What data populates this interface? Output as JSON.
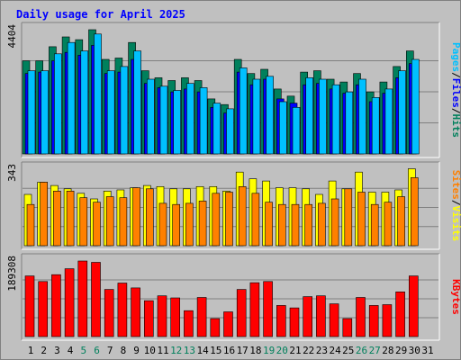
{
  "title": "Daily usage for April 2025",
  "colors": {
    "background": "#c0c0c0",
    "panel": "#c0c0c0",
    "title": "#0000ff",
    "hits": "#00805c",
    "files": "#0000ff",
    "pages": "#00c0ff",
    "visits": "#ffff00",
    "sites": "#ff8000",
    "kbytes": "#ff0000",
    "weekend_label": "#00805c",
    "weekday_label": "#000000"
  },
  "chart_data": [
    {
      "type": "bar",
      "name": "hits-files-pages",
      "y_max_label": "4404",
      "ylim": [
        0,
        4404
      ],
      "grid": true,
      "right_labels": [
        "Pages",
        "Files",
        "Hits"
      ],
      "categories": [
        "1",
        "2",
        "3",
        "4",
        "5",
        "6",
        "7",
        "8",
        "9",
        "10",
        "11",
        "12",
        "13",
        "14",
        "15",
        "16",
        "17",
        "18",
        "19",
        "20",
        "21",
        "22",
        "23",
        "24",
        "25",
        "26",
        "27",
        "28",
        "29",
        "30",
        "31"
      ],
      "weekend_days": [
        "5",
        "6",
        "12",
        "13",
        "19",
        "20",
        "26",
        "27"
      ],
      "series": [
        {
          "name": "Hits",
          "values": [
            3300,
            3300,
            3800,
            4150,
            4050,
            4404,
            3350,
            3400,
            3950,
            2950,
            2700,
            2600,
            2700,
            2600,
            1950,
            1750,
            3350,
            2850,
            3000,
            2300,
            2050,
            2900,
            2950,
            2650,
            2550,
            2850,
            2200,
            2550,
            3100,
            3650,
            0
          ]
        },
        {
          "name": "Files",
          "values": [
            2850,
            2900,
            3300,
            3600,
            3500,
            3850,
            2850,
            2900,
            3350,
            2500,
            2350,
            2200,
            2300,
            2200,
            1650,
            1450,
            2900,
            2450,
            2650,
            1950,
            1800,
            2450,
            2500,
            2300,
            2150,
            2450,
            1850,
            2150,
            2700,
            3200,
            0
          ]
        },
        {
          "name": "Pages",
          "values": [
            2950,
            2950,
            3550,
            3950,
            3650,
            4250,
            2950,
            3100,
            3650,
            2650,
            2400,
            2250,
            2500,
            2350,
            1800,
            1600,
            3050,
            2650,
            2750,
            1850,
            1650,
            2700,
            2650,
            2450,
            2200,
            2650,
            2000,
            2300,
            2950,
            3350,
            0
          ]
        }
      ]
    },
    {
      "type": "bar",
      "name": "visits-sites",
      "y_max_label": "343",
      "ylim": [
        0,
        343
      ],
      "grid": true,
      "right_labels": [
        "Sites",
        "Visits"
      ],
      "categories": [
        "1",
        "2",
        "3",
        "4",
        "5",
        "6",
        "7",
        "8",
        "9",
        "10",
        "11",
        "12",
        "13",
        "14",
        "15",
        "16",
        "17",
        "18",
        "19",
        "20",
        "21",
        "22",
        "23",
        "24",
        "25",
        "26",
        "27",
        "28",
        "29",
        "30",
        "31"
      ],
      "weekend_days": [
        "5",
        "6",
        "12",
        "13",
        "19",
        "20",
        "26",
        "27"
      ],
      "series": [
        {
          "name": "Visits",
          "values": [
            230,
            285,
            270,
            255,
            235,
            210,
            245,
            250,
            260,
            270,
            265,
            255,
            255,
            265,
            265,
            245,
            330,
            300,
            290,
            260,
            260,
            255,
            230,
            290,
            255,
            330,
            240,
            240,
            250,
            345,
            0
          ]
        },
        {
          "name": "Sites",
          "values": [
            185,
            285,
            245,
            245,
            215,
            195,
            220,
            215,
            260,
            255,
            190,
            185,
            190,
            200,
            235,
            240,
            265,
            235,
            195,
            185,
            185,
            185,
            190,
            210,
            255,
            240,
            185,
            195,
            220,
            305,
            0
          ]
        }
      ]
    },
    {
      "type": "bar",
      "name": "kbytes",
      "y_max_label": "189308",
      "ylim": [
        0,
        189308
      ],
      "grid": true,
      "right_labels": [
        "KBytes"
      ],
      "categories": [
        "1",
        "2",
        "3",
        "4",
        "5",
        "6",
        "7",
        "8",
        "9",
        "10",
        "11",
        "12",
        "13",
        "14",
        "15",
        "16",
        "17",
        "18",
        "19",
        "20",
        "21",
        "22",
        "23",
        "24",
        "25",
        "26",
        "27",
        "28",
        "29",
        "30",
        "31"
      ],
      "weekend_days": [
        "5",
        "6",
        "12",
        "13",
        "19",
        "20",
        "26",
        "27"
      ],
      "series": [
        {
          "name": "KBytes",
          "values": [
            152000,
            138000,
            155000,
            170000,
            189308,
            186000,
            118000,
            134000,
            122000,
            90000,
            102000,
            97000,
            65000,
            98000,
            45000,
            62000,
            118000,
            135000,
            138000,
            78000,
            72000,
            100000,
            102000,
            82000,
            45000,
            98000,
            78000,
            80000,
            112000,
            152000,
            0
          ]
        }
      ]
    }
  ]
}
